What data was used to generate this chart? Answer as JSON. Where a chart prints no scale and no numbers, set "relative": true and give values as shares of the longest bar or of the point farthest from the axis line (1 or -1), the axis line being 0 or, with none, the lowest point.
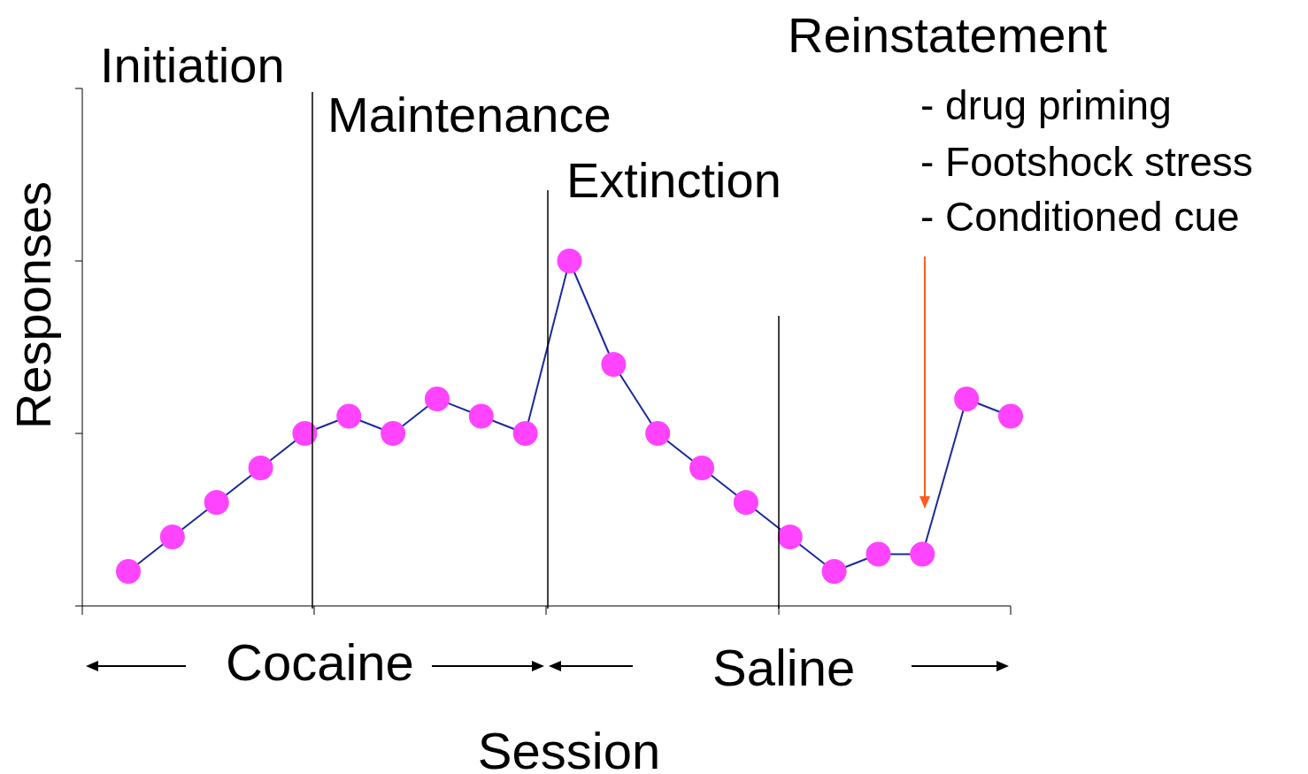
{
  "chart_data": {
    "type": "line",
    "xlabel": "Session",
    "ylabel": "Responses",
    "annotations": [
      "Initiation",
      "Maintenance",
      "Extinction",
      "Reinstatement",
      "- drug priming",
      "- Footshock stress",
      "- Conditioned cue",
      "Cocaine",
      "Saline"
    ],
    "categories": [
      null,
      null,
      null,
      null,
      null,
      null,
      null,
      null,
      null,
      null,
      null,
      null,
      null,
      null,
      null,
      null,
      null,
      null,
      null,
      null,
      null
    ],
    "series": [
      {
        "color": "#1a2a9a",
        "colors": [
          "#ff44ff",
          "#ff44ff",
          "#ff44ff",
          "#ff44ff",
          "#ff44ff",
          "#ff44ff",
          "#ff44ff",
          "#ff44ff",
          "#ff44ff",
          "#ff44ff",
          "#ff44ff",
          "#ff44ff",
          "#ff44ff",
          "#ff44ff",
          "#ff44ff",
          "#ff44ff",
          "#ff44ff",
          "#ff44ff",
          "#ff44ff",
          "#ff44ff",
          "#ff44ff"
        ],
        "values": [
          0.1,
          0.2,
          0.3,
          0.4,
          0.5,
          0.55,
          0.5,
          0.6,
          0.55,
          0.5,
          1.0,
          0.7,
          0.5,
          0.4,
          0.3,
          0.2,
          0.1,
          0.15,
          0.15,
          0.6,
          0.55
        ]
      }
    ],
    "relative": true,
    "legend": false,
    "marker": "circle",
    "line_style": "solid"
  }
}
